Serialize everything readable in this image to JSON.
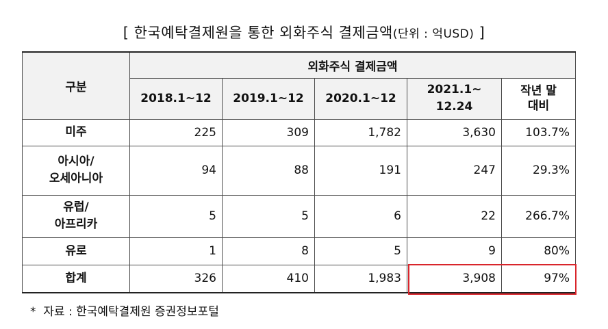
{
  "title": {
    "main": "[ 한국예탁결제원을 통한 외화주식 결제금액",
    "unit": "(단위 : 억USD)",
    "close": " ]"
  },
  "table": {
    "row_header": "구분",
    "group_header": "외화주식 결제금액",
    "columns": [
      "2018.1~12",
      "2019.1~12",
      "2020.1~12",
      "2021.1~\n12.24",
      "작년 말\n대비"
    ],
    "rows": [
      {
        "label": "미주",
        "values": [
          "225",
          "309",
          "1,782",
          "3,630",
          "103.7%"
        ]
      },
      {
        "label": "아시아/\n오세아니아",
        "values": [
          "94",
          "88",
          "191",
          "247",
          "29.3%"
        ]
      },
      {
        "label": "유럽/\n아프리카",
        "values": [
          "5",
          "5",
          "6",
          "22",
          "266.7%"
        ]
      },
      {
        "label": "유로",
        "values": [
          "1",
          "8",
          "5",
          "9",
          "80%"
        ]
      },
      {
        "label": "합계",
        "values": [
          "326",
          "410",
          "1,983",
          "3,908",
          "97%"
        ]
      }
    ]
  },
  "highlight_color": "#d9252b",
  "note": "*  자료 : 한국예탁결제원 증권정보포털"
}
